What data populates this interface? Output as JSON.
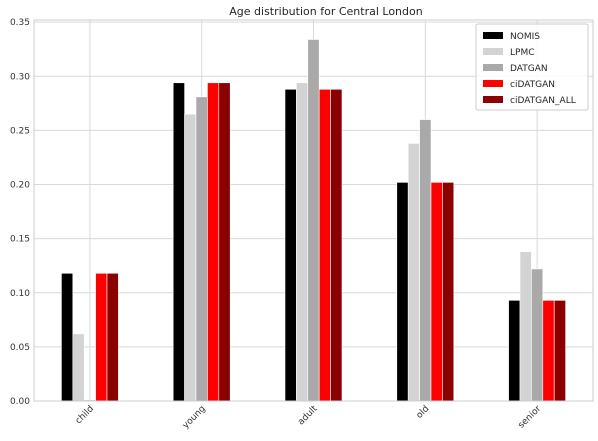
{
  "chart_data": {
    "type": "bar",
    "title": "Age distribution for Central London",
    "xlabel": "",
    "ylabel": "",
    "categories": [
      "child",
      "young",
      "adult",
      "old",
      "senior"
    ],
    "series": [
      {
        "name": "NOMIS",
        "color": "#000000",
        "values": [
          0.118,
          0.294,
          0.288,
          0.202,
          0.093
        ]
      },
      {
        "name": "LPMC",
        "color": "#d3d3d3",
        "values": [
          0.062,
          0.265,
          0.294,
          0.238,
          0.138
        ]
      },
      {
        "name": "DATGAN",
        "color": "#a9a9a9",
        "values": [
          0.001,
          0.281,
          0.334,
          0.26,
          0.122
        ]
      },
      {
        "name": "ciDATGAN",
        "color": "#ff0000",
        "values": [
          0.118,
          0.294,
          0.288,
          0.202,
          0.093
        ]
      },
      {
        "name": "ciDATGAN_ALL",
        "color": "#8b0000",
        "values": [
          0.118,
          0.294,
          0.288,
          0.202,
          0.093
        ]
      }
    ],
    "ylim": [
      0,
      0.352
    ],
    "yticks": [
      "0.00",
      "0.05",
      "0.10",
      "0.15",
      "0.20",
      "0.25",
      "0.30",
      "0.35"
    ],
    "grid": true,
    "legend_position": "top-right"
  }
}
